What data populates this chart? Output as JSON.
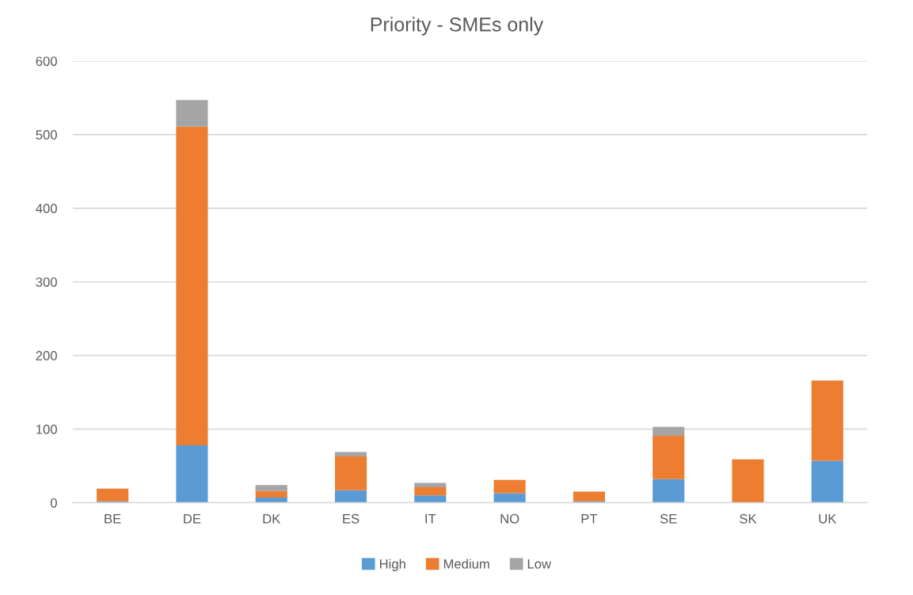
{
  "chart_data": {
    "type": "bar",
    "title": "Priority - SMEs only",
    "categories": [
      "BE",
      "DE",
      "DK",
      "ES",
      "IT",
      "NO",
      "PT",
      "SE",
      "SK",
      "UK"
    ],
    "stacked": true,
    "series": [
      {
        "name": "High",
        "color": "#5b9bd5",
        "values": [
          2,
          78,
          7,
          17,
          10,
          13,
          2,
          32,
          0,
          57
        ]
      },
      {
        "name": "Medium",
        "color": "#ed7d31",
        "values": [
          17,
          433,
          9,
          46,
          11,
          18,
          13,
          59,
          59,
          109
        ]
      },
      {
        "name": "Low",
        "color": "#a5a5a5",
        "values": [
          0,
          36,
          8,
          6,
          6,
          0,
          0,
          12,
          0,
          0
        ]
      }
    ],
    "ylim": [
      0,
      600
    ],
    "yticks": [
      0,
      100,
      200,
      300,
      400,
      500,
      600
    ],
    "grid": "y",
    "legend": "bottom"
  }
}
